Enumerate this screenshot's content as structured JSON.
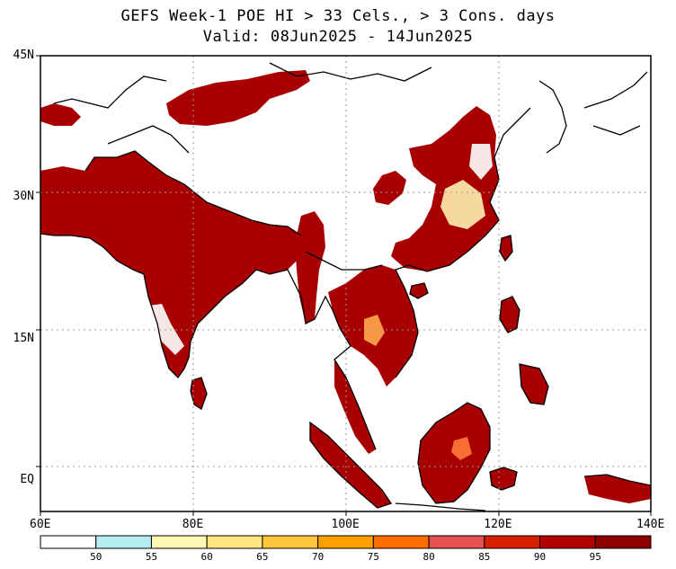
{
  "title_line1": "GEFS Week-1 POE HI > 33 Cels., > 3 Cons. days",
  "title_line2": "Valid: 08Jun2025 - 14Jun2025",
  "lat_labels": [
    {
      "text": "45N",
      "lat": 45
    },
    {
      "text": "30N",
      "lat": 30
    },
    {
      "text": "15N",
      "lat": 15
    },
    {
      "text": "EQ",
      "lat": 0
    }
  ],
  "lon_labels": [
    {
      "text": "60E",
      "lon": 60
    },
    {
      "text": "80E",
      "lon": 80
    },
    {
      "text": "100E",
      "lon": 100
    },
    {
      "text": "120E",
      "lon": 120
    },
    {
      "text": "140E",
      "lon": 140
    }
  ],
  "colorbar": {
    "colors": [
      "#ffffff",
      "#b4ecf0",
      "#fff8b4",
      "#ffe680",
      "#ffc83c",
      "#ffa000",
      "#ff6e00",
      "#e65050",
      "#d81e00",
      "#b40000",
      "#8c0000"
    ],
    "labels": [
      "50",
      "55",
      "60",
      "65",
      "70",
      "75",
      "80",
      "85",
      "90",
      "95"
    ]
  }
}
